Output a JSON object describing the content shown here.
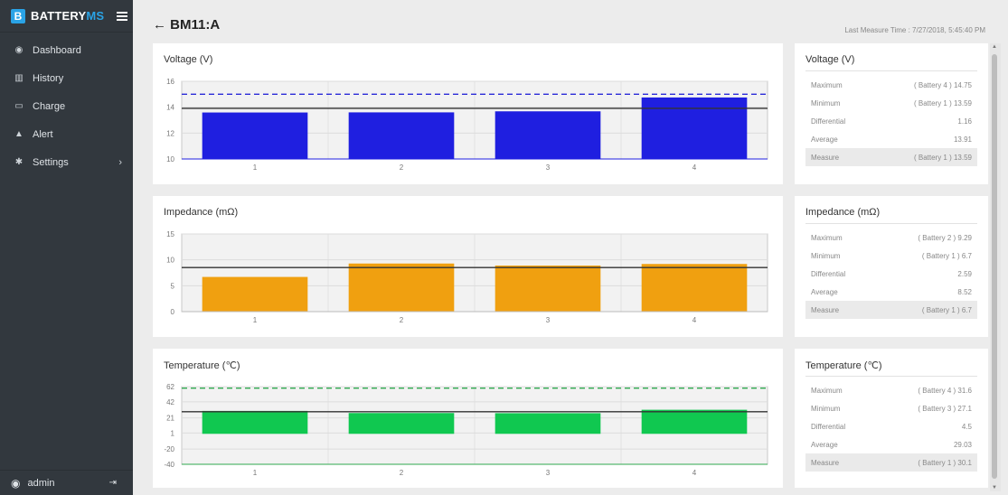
{
  "sidebar": {
    "brand": {
      "letter": "B",
      "name_a": "BATTERY",
      "name_b": "MS"
    },
    "items": [
      {
        "label": "Dashboard",
        "icon": "dashboard-icon",
        "glyph": "◉"
      },
      {
        "label": "History",
        "icon": "history-icon",
        "glyph": "▥"
      },
      {
        "label": "Charge",
        "icon": "charge-icon",
        "glyph": "▭"
      },
      {
        "label": "Alert",
        "icon": "alert-icon",
        "glyph": "▲"
      },
      {
        "label": "Settings",
        "icon": "gear-icon",
        "glyph": "✱",
        "chevron": "›"
      }
    ],
    "user": {
      "name": "admin",
      "user_glyph": "◉",
      "logout_glyph": "⇥"
    }
  },
  "header": {
    "back_arrow": "←",
    "title": "BM11:A",
    "last_measure": "Last Measure Time : 7/27/2018, 5:45:40 PM"
  },
  "colors": {
    "voltage": "#1f1fe0",
    "impedance": "#f0a010",
    "temperature": "#10c850",
    "sidebar": "#32383e",
    "brand_accent": "#2aa3e6"
  },
  "chart_data": [
    {
      "type": "bar",
      "title": "Voltage (V)",
      "categories": [
        "1",
        "2",
        "3",
        "4"
      ],
      "values": [
        13.59,
        13.6,
        13.68,
        14.75
      ],
      "ylim": [
        10,
        16
      ],
      "yticks": [
        10,
        12,
        14,
        16
      ],
      "average_line": 13.91,
      "dashed_line": 15,
      "color": "#1f1fe0",
      "dash_color": "#2a2ad8"
    },
    {
      "type": "bar",
      "title": "Impedance (mΩ)",
      "categories": [
        "1",
        "2",
        "3",
        "4"
      ],
      "values": [
        6.7,
        9.29,
        8.9,
        9.2
      ],
      "ylim": [
        0,
        15
      ],
      "yticks": [
        0,
        5,
        10,
        15
      ],
      "average_line": 8.52,
      "dashed_line": null,
      "color": "#f0a010",
      "dash_color": null
    },
    {
      "type": "bar",
      "title": "Temperature (℃)",
      "categories": [
        "1",
        "2",
        "3",
        "4"
      ],
      "values": [
        30.1,
        27.3,
        27.1,
        31.6
      ],
      "ylim": [
        -40,
        62
      ],
      "yticks": [
        -40,
        -20,
        1,
        21,
        42,
        62
      ],
      "average_line": 29.03,
      "dashed_line": 60,
      "color": "#10c850",
      "dash_color": "#2fa84f"
    }
  ],
  "stats": [
    {
      "title": "Voltage (V)",
      "rows": [
        {
          "label": "Maximum",
          "value": "( Battery 4 ) 14.75"
        },
        {
          "label": "Minimum",
          "value": "( Battery 1 ) 13.59"
        },
        {
          "label": "Differential",
          "value": "1.16"
        },
        {
          "label": "Average",
          "value": "13.91"
        },
        {
          "label": "Measure",
          "value": "( Battery 1 ) 13.59"
        }
      ]
    },
    {
      "title": "Impedance (mΩ)",
      "rows": [
        {
          "label": "Maximum",
          "value": "( Battery 2 ) 9.29"
        },
        {
          "label": "Minimum",
          "value": "( Battery 1 ) 6.7"
        },
        {
          "label": "Differential",
          "value": "2.59"
        },
        {
          "label": "Average",
          "value": "8.52"
        },
        {
          "label": "Measure",
          "value": "( Battery 1 ) 6.7"
        }
      ]
    },
    {
      "title": "Temperature (℃)",
      "rows": [
        {
          "label": "Maximum",
          "value": "( Battery 4 ) 31.6"
        },
        {
          "label": "Minimum",
          "value": "( Battery 3 ) 27.1"
        },
        {
          "label": "Differential",
          "value": "4.5"
        },
        {
          "label": "Average",
          "value": "29.03"
        },
        {
          "label": "Measure",
          "value": "( Battery 1 ) 30.1"
        }
      ]
    }
  ],
  "scrollbar": {
    "up": "▲",
    "down": "▼"
  }
}
